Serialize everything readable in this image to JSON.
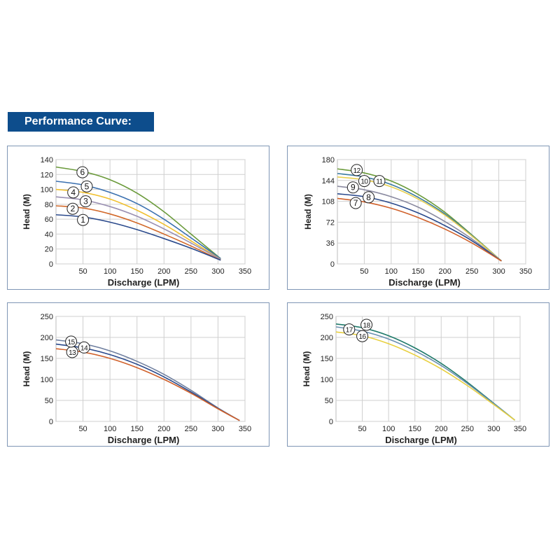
{
  "header": {
    "title": "Performance Curve:"
  },
  "colors": {
    "banner": "#0d4d8c",
    "panel_border": "#7f96b5",
    "grid": "#cfcfcf"
  },
  "chart_data": [
    {
      "type": "line",
      "xlabel": "Discharge (LPM)",
      "ylabel": "Head (M)",
      "xlim": [
        0,
        350
      ],
      "ylim": [
        0,
        140
      ],
      "xticks": [
        50,
        100,
        150,
        200,
        250,
        300,
        350
      ],
      "yticks": [
        0,
        20,
        40,
        60,
        80,
        100,
        120,
        140
      ],
      "grid": true,
      "x": [
        0,
        50,
        100,
        150,
        200,
        250,
        305
      ],
      "series": [
        {
          "name": "1",
          "color": "#2b4a8c",
          "values": [
            66,
            63,
            56,
            46,
            34,
            21,
            5
          ]
        },
        {
          "name": "2",
          "color": "#d2692a",
          "values": [
            78,
            75,
            67,
            55,
            40,
            24,
            5
          ]
        },
        {
          "name": "3",
          "color": "#9a90b2",
          "values": [
            90,
            86,
            77,
            64,
            47,
            28,
            6
          ]
        },
        {
          "name": "4",
          "color": "#f0c030",
          "values": [
            100,
            96,
            87,
            72,
            53,
            31,
            6
          ]
        },
        {
          "name": "5",
          "color": "#3a70b0",
          "values": [
            111,
            106,
            96,
            81,
            60,
            35,
            7
          ]
        },
        {
          "name": "6",
          "color": "#6a9a3a",
          "values": [
            130,
            124,
            113,
            95,
            70,
            40,
            7
          ]
        }
      ]
    },
    {
      "type": "line",
      "xlabel": "Discharge (LPM)",
      "ylabel": "Head (M)",
      "xlim": [
        0,
        350
      ],
      "ylim": [
        0,
        180
      ],
      "xticks": [
        50,
        100,
        150,
        200,
        250,
        300,
        350
      ],
      "yticks": [
        0,
        36,
        72,
        108,
        144,
        180
      ],
      "grid": true,
      "x": [
        0,
        50,
        100,
        150,
        200,
        250,
        305
      ],
      "series": [
        {
          "name": "7",
          "color": "#d0602a",
          "values": [
            113,
            107,
            96,
            80,
            60,
            36,
            5
          ]
        },
        {
          "name": "8",
          "color": "#2b4a8c",
          "values": [
            121,
            116,
            105,
            88,
            66,
            40,
            5
          ]
        },
        {
          "name": "9",
          "color": "#8a8aa0",
          "values": [
            134,
            128,
            116,
            98,
            73,
            43,
            5
          ]
        },
        {
          "name": "10",
          "color": "#e8d050",
          "values": [
            150,
            145,
            133,
            112,
            84,
            48,
            5
          ]
        },
        {
          "name": "11",
          "color": "#3a7aa0",
          "values": [
            156,
            150,
            137,
            115,
            86,
            49,
            5
          ]
        },
        {
          "name": "12",
          "color": "#6a9a3a",
          "values": [
            164,
            157,
            143,
            120,
            89,
            50,
            5
          ]
        }
      ]
    },
    {
      "type": "line",
      "xlabel": "Discharge (LPM)",
      "ylabel": "Head (M)",
      "xlim": [
        0,
        350
      ],
      "ylim": [
        0,
        250
      ],
      "xticks": [
        50,
        100,
        150,
        200,
        250,
        300,
        350
      ],
      "yticks": [
        0,
        50,
        100,
        150,
        200,
        250
      ],
      "grid": true,
      "x": [
        0,
        50,
        100,
        150,
        200,
        250,
        300,
        340
      ],
      "series": [
        {
          "name": "13",
          "color": "#d0602a",
          "values": [
            173,
            165,
            150,
            128,
            100,
            67,
            30,
            2
          ]
        },
        {
          "name": "14",
          "color": "#2b4a8c",
          "values": [
            184,
            175,
            159,
            136,
            106,
            70,
            31,
            2
          ]
        },
        {
          "name": "15",
          "color": "#7080a0",
          "values": [
            194,
            185,
            168,
            143,
            112,
            74,
            32,
            2
          ]
        }
      ]
    },
    {
      "type": "line",
      "xlabel": "Discharge (LPM)",
      "ylabel": "Head (M)",
      "xlim": [
        0,
        350
      ],
      "ylim": [
        0,
        250
      ],
      "xticks": [
        50,
        100,
        150,
        200,
        250,
        300,
        350
      ],
      "yticks": [
        0,
        50,
        100,
        150,
        200,
        250
      ],
      "grid": true,
      "x": [
        0,
        50,
        100,
        150,
        200,
        250,
        300,
        340
      ],
      "series": [
        {
          "name": "16",
          "color": "#e8d040",
          "values": [
            213,
            204,
            185,
            158,
            125,
            85,
            40,
            3
          ]
        },
        {
          "name": "17",
          "color": "#6a90b0",
          "values": [
            225,
            215,
            196,
            168,
            133,
            90,
            42,
            3
          ]
        },
        {
          "name": "18",
          "color": "#1f7a6a",
          "values": [
            232,
            223,
            204,
            175,
            138,
            93,
            43,
            3
          ]
        }
      ]
    }
  ]
}
